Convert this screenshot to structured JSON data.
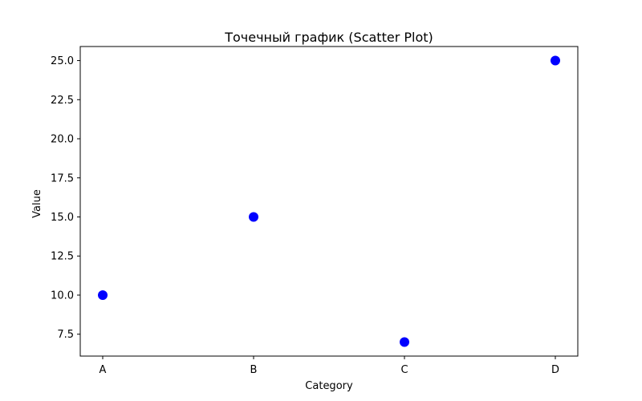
{
  "chart_data": {
    "type": "scatter",
    "title": "Точечный график (Scatter Plot)",
    "xlabel": "Category",
    "ylabel": "Value",
    "categories": [
      "A",
      "B",
      "C",
      "D"
    ],
    "series": [
      {
        "values": [
          10.0,
          15.0,
          7.0,
          25.0
        ],
        "color": "#0000ff"
      }
    ],
    "ylim": [
      6.1,
      25.9
    ],
    "yticks": [
      7.5,
      10.0,
      12.5,
      15.0,
      17.5,
      20.0,
      22.5,
      25.0
    ],
    "ytick_labels": [
      "7.5",
      "10.0",
      "12.5",
      "15.0",
      "17.5",
      "20.0",
      "22.5",
      "25.0"
    ],
    "grid": false,
    "legend": "none"
  }
}
